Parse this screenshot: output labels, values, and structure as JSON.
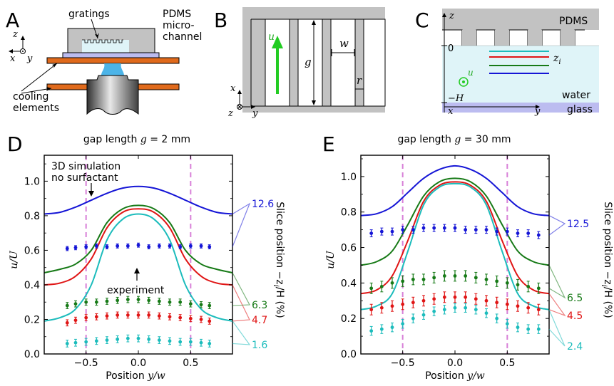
{
  "panels": {
    "A": {
      "letter": "A",
      "gratings": "gratings",
      "pdms": [
        "PDMS",
        "micro-",
        "channel"
      ],
      "cooling": [
        "cooling",
        "elements"
      ],
      "ax_z": "z",
      "ax_x": "x",
      "ax_y": "y"
    },
    "B": {
      "letter": "B",
      "u": "u",
      "g": "g",
      "w": "w",
      "r": "r",
      "ax_x": "x",
      "ax_z": "z",
      "ax_y": "y"
    },
    "C": {
      "letter": "C",
      "pdms": "PDMS",
      "water": "water",
      "glass": "glass",
      "ax_z": "z",
      "ax_x": "x",
      "ax_y": "y",
      "zero": "0",
      "minus_h": "−H",
      "zi": "z",
      "zi_sub": "i",
      "u": "u"
    },
    "D": {
      "letter": "D"
    },
    "E": {
      "letter": "E"
    }
  },
  "colors": {
    "blue": "#1515d6",
    "red": "#e01515",
    "green": "#177a17",
    "cyan": "#1cbcbc",
    "magenta": "#d880d8",
    "gray": "#c2c2c2",
    "water": "#dff4f8",
    "glass": "#bcbcf0",
    "orange": "#e06a1c",
    "lightblue": "#4cb4e8"
  },
  "chart_data": [
    {
      "type": "line",
      "panel": "D",
      "title_text": "gap length",
      "title_var": "g",
      "title_val": "= 2 mm",
      "xlabel": "Position",
      "xlabel_var": "y/w",
      "ylabel": "u/U",
      "right_label": "Slice position −z",
      "right_label_sub": "i",
      "right_label_tail": "/H (%)",
      "xlim": [
        -0.9,
        0.9
      ],
      "ylim": [
        0.0,
        1.15
      ],
      "xticks": [
        -0.5,
        0.0,
        0.5
      ],
      "xtick_labels": [
        "−0.5",
        "0.0",
        "0.5"
      ],
      "yticks": [
        0.0,
        0.2,
        0.4,
        0.6,
        0.8,
        1.0
      ],
      "ytick_labels": [
        "0.0",
        "0.2",
        "0.4",
        "0.6",
        "0.8",
        "1.0"
      ],
      "vlines": [
        -0.5,
        0.5
      ],
      "annotations": {
        "simulation": [
          "3D simulation",
          "no surfactant"
        ],
        "experiment": "experiment"
      },
      "curves": [
        {
          "color": "blue",
          "y": [
            0.81,
            0.82,
            0.85,
            0.89,
            0.93,
            0.96,
            0.97,
            0.96,
            0.93,
            0.89,
            0.85,
            0.82,
            0.81
          ]
        },
        {
          "color": "green",
          "y": [
            0.47,
            0.49,
            0.52,
            0.6,
            0.76,
            0.84,
            0.86,
            0.84,
            0.76,
            0.6,
            0.52,
            0.49,
            0.47
          ]
        },
        {
          "color": "red",
          "y": [
            0.4,
            0.41,
            0.45,
            0.55,
            0.73,
            0.82,
            0.84,
            0.82,
            0.73,
            0.55,
            0.45,
            0.41,
            0.4
          ]
        },
        {
          "color": "cyan",
          "y": [
            0.19,
            0.21,
            0.26,
            0.4,
            0.66,
            0.78,
            0.81,
            0.78,
            0.66,
            0.4,
            0.26,
            0.21,
            0.19
          ]
        }
      ],
      "curve_x": [
        -0.9,
        -0.75,
        -0.6,
        -0.45,
        -0.3,
        -0.15,
        0.0,
        0.15,
        0.3,
        0.45,
        0.6,
        0.75,
        0.9
      ],
      "points_x": [
        -0.68,
        -0.6,
        -0.5,
        -0.4,
        -0.3,
        -0.2,
        -0.1,
        0.0,
        0.1,
        0.2,
        0.3,
        0.4,
        0.5,
        0.6,
        0.68
      ],
      "points": [
        {
          "color": "blue",
          "label": "12.6",
          "err": 0.012,
          "y": [
            0.61,
            0.615,
            0.62,
            0.625,
            0.62,
            0.625,
            0.625,
            0.63,
            0.62,
            0.625,
            0.625,
            0.62,
            0.625,
            0.625,
            0.62
          ]
        },
        {
          "color": "green",
          "label": "6.3",
          "err": 0.018,
          "y": [
            0.28,
            0.29,
            0.3,
            0.3,
            0.305,
            0.31,
            0.315,
            0.315,
            0.31,
            0.305,
            0.3,
            0.3,
            0.29,
            0.285,
            0.28
          ]
        },
        {
          "color": "red",
          "label": "4.7",
          "err": 0.018,
          "y": [
            0.18,
            0.195,
            0.21,
            0.215,
            0.22,
            0.225,
            0.225,
            0.225,
            0.225,
            0.22,
            0.215,
            0.21,
            0.205,
            0.2,
            0.19
          ]
        },
        {
          "color": "cyan",
          "label": "1.6",
          "err": 0.02,
          "y": [
            0.06,
            0.065,
            0.07,
            0.075,
            0.08,
            0.085,
            0.09,
            0.09,
            0.085,
            0.08,
            0.075,
            0.07,
            0.07,
            0.065,
            0.06
          ]
        }
      ]
    },
    {
      "type": "line",
      "panel": "E",
      "title_text": "gap length",
      "title_var": "g",
      "title_val": "= 30 mm",
      "xlabel": "Position",
      "xlabel_var": "y/w",
      "ylabel": "u/U",
      "right_label": "Slice position −z",
      "right_label_sub": "i",
      "right_label_tail": "/H (%)",
      "xlim": [
        -0.9,
        0.9
      ],
      "ylim": [
        0.0,
        1.12
      ],
      "xticks": [
        -0.5,
        0.0,
        0.5
      ],
      "xtick_labels": [
        "−0.5",
        "0.0",
        "0.5"
      ],
      "yticks": [
        0.0,
        0.2,
        0.4,
        0.6,
        0.8,
        1.0
      ],
      "ytick_labels": [
        "0.0",
        "0.2",
        "0.4",
        "0.6",
        "0.8",
        "1.0"
      ],
      "vlines": [
        -0.5,
        0.5
      ],
      "curves": [
        {
          "color": "blue",
          "y": [
            0.78,
            0.79,
            0.83,
            0.91,
            0.99,
            1.04,
            1.06,
            1.04,
            0.99,
            0.91,
            0.83,
            0.79,
            0.78
          ]
        },
        {
          "color": "green",
          "y": [
            0.5,
            0.52,
            0.58,
            0.73,
            0.89,
            0.97,
            0.99,
            0.97,
            0.89,
            0.73,
            0.58,
            0.52,
            0.5
          ]
        },
        {
          "color": "red",
          "y": [
            0.34,
            0.36,
            0.44,
            0.64,
            0.86,
            0.95,
            0.97,
            0.95,
            0.86,
            0.64,
            0.44,
            0.36,
            0.34
          ]
        },
        {
          "color": "cyan",
          "y": [
            0.25,
            0.27,
            0.34,
            0.58,
            0.84,
            0.94,
            0.96,
            0.94,
            0.84,
            0.58,
            0.34,
            0.27,
            0.25
          ]
        }
      ],
      "curve_x": [
        -0.9,
        -0.75,
        -0.6,
        -0.45,
        -0.3,
        -0.15,
        0.0,
        0.15,
        0.3,
        0.45,
        0.6,
        0.75,
        0.9
      ],
      "points_x": [
        -0.8,
        -0.7,
        -0.6,
        -0.5,
        -0.4,
        -0.3,
        -0.2,
        -0.1,
        0.0,
        0.1,
        0.2,
        0.3,
        0.4,
        0.5,
        0.6,
        0.7,
        0.8
      ],
      "points": [
        {
          "color": "blue",
          "label": "12.5",
          "err": 0.02,
          "y": [
            0.68,
            0.69,
            0.69,
            0.7,
            0.7,
            0.71,
            0.71,
            0.71,
            0.71,
            0.7,
            0.7,
            0.7,
            0.69,
            0.69,
            0.68,
            0.68,
            0.67
          ]
        },
        {
          "color": "green",
          "label": "6.5",
          "err": 0.03,
          "y": [
            0.37,
            0.38,
            0.4,
            0.41,
            0.42,
            0.42,
            0.43,
            0.44,
            0.44,
            0.44,
            0.43,
            0.42,
            0.41,
            0.4,
            0.39,
            0.38,
            0.37
          ]
        },
        {
          "color": "red",
          "label": "4.5",
          "err": 0.03,
          "y": [
            0.25,
            0.26,
            0.27,
            0.28,
            0.29,
            0.3,
            0.31,
            0.32,
            0.32,
            0.32,
            0.31,
            0.3,
            0.29,
            0.28,
            0.27,
            0.26,
            0.25
          ]
        },
        {
          "color": "cyan",
          "label": "2.4",
          "err": 0.025,
          "y": [
            0.13,
            0.14,
            0.15,
            0.17,
            0.2,
            0.22,
            0.24,
            0.25,
            0.26,
            0.26,
            0.25,
            0.23,
            0.2,
            0.17,
            0.15,
            0.14,
            0.14
          ]
        }
      ]
    }
  ]
}
